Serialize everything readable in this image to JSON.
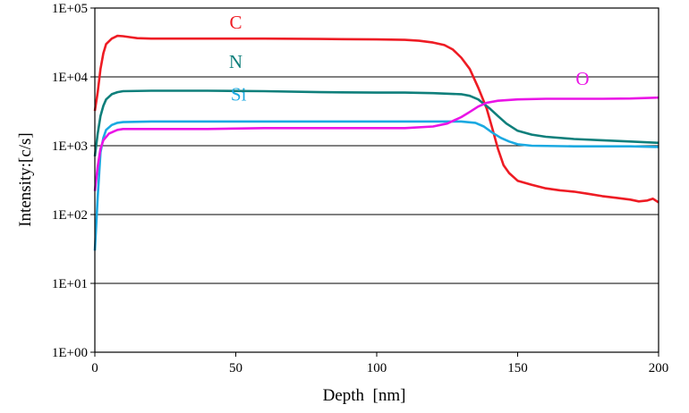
{
  "chart_data": {
    "type": "line",
    "title": "",
    "xlabel": "Depth  [nm]",
    "ylabel": "Intensity:[c/s]",
    "xlim": [
      0,
      200
    ],
    "ylim": [
      1,
      100000
    ],
    "yscale": "log",
    "x_ticks": [
      0,
      50,
      100,
      150,
      200
    ],
    "x_tick_labels": [
      "0",
      "50",
      "100",
      "150",
      "200"
    ],
    "y_ticks": [
      1,
      10,
      100,
      1000,
      10000,
      100000
    ],
    "y_tick_labels": [
      "1E+00",
      "1E+01",
      "1E+02",
      "1E+03",
      "1E+04",
      "1E+05"
    ],
    "grid": "horizontal",
    "series": [
      {
        "name": "C",
        "color": "#ee1c24",
        "label_at": [
          50,
          50000
        ],
        "points": [
          [
            0,
            3200
          ],
          [
            1,
            6000
          ],
          [
            2,
            13000
          ],
          [
            3,
            22000
          ],
          [
            4,
            30000
          ],
          [
            6,
            36000
          ],
          [
            8,
            39500
          ],
          [
            10,
            39000
          ],
          [
            12,
            38000
          ],
          [
            15,
            36500
          ],
          [
            20,
            36000
          ],
          [
            40,
            36000
          ],
          [
            60,
            36000
          ],
          [
            80,
            35500
          ],
          [
            100,
            35000
          ],
          [
            110,
            34500
          ],
          [
            115,
            33500
          ],
          [
            120,
            31500
          ],
          [
            124,
            29000
          ],
          [
            127,
            25000
          ],
          [
            130,
            19000
          ],
          [
            133,
            13000
          ],
          [
            136,
            7000
          ],
          [
            139,
            3500
          ],
          [
            141,
            1800
          ],
          [
            143,
            900
          ],
          [
            145,
            520
          ],
          [
            147,
            400
          ],
          [
            150,
            310
          ],
          [
            155,
            270
          ],
          [
            160,
            240
          ],
          [
            165,
            225
          ],
          [
            170,
            215
          ],
          [
            175,
            200
          ],
          [
            180,
            185
          ],
          [
            185,
            175
          ],
          [
            190,
            165
          ],
          [
            193,
            155
          ],
          [
            196,
            160
          ],
          [
            198,
            170
          ],
          [
            200,
            150
          ]
        ]
      },
      {
        "name": "N",
        "color": "#0f7f7b",
        "label_at": [
          50,
          13500
        ],
        "points": [
          [
            0,
            700
          ],
          [
            1,
            1500
          ],
          [
            2,
            2700
          ],
          [
            3,
            3800
          ],
          [
            4,
            4700
          ],
          [
            6,
            5600
          ],
          [
            8,
            6000
          ],
          [
            10,
            6200
          ],
          [
            20,
            6300
          ],
          [
            40,
            6300
          ],
          [
            60,
            6200
          ],
          [
            80,
            6000
          ],
          [
            100,
            5900
          ],
          [
            110,
            5900
          ],
          [
            120,
            5800
          ],
          [
            130,
            5600
          ],
          [
            133,
            5300
          ],
          [
            136,
            4700
          ],
          [
            140,
            3500
          ],
          [
            143,
            2700
          ],
          [
            146,
            2100
          ],
          [
            150,
            1650
          ],
          [
            155,
            1450
          ],
          [
            160,
            1350
          ],
          [
            170,
            1250
          ],
          [
            180,
            1200
          ],
          [
            190,
            1150
          ],
          [
            200,
            1100
          ]
        ]
      },
      {
        "name": "Si",
        "color": "#1ba9e1",
        "label_at": [
          51,
          4500
        ],
        "points": [
          [
            0,
            30
          ],
          [
            1,
            180
          ],
          [
            2,
            800
          ],
          [
            3,
            1300
          ],
          [
            4,
            1700
          ],
          [
            6,
            2000
          ],
          [
            8,
            2150
          ],
          [
            10,
            2200
          ],
          [
            20,
            2250
          ],
          [
            40,
            2250
          ],
          [
            60,
            2250
          ],
          [
            80,
            2250
          ],
          [
            100,
            2250
          ],
          [
            120,
            2250
          ],
          [
            130,
            2250
          ],
          [
            135,
            2150
          ],
          [
            138,
            1900
          ],
          [
            141,
            1550
          ],
          [
            144,
            1300
          ],
          [
            147,
            1150
          ],
          [
            150,
            1050
          ],
          [
            155,
            1000
          ],
          [
            170,
            980
          ],
          [
            190,
            980
          ],
          [
            200,
            960
          ]
        ]
      },
      {
        "name": "O",
        "color": "#ea14e6",
        "label_at": [
          173,
          7600
        ],
        "points": [
          [
            0,
            220
          ],
          [
            1,
            500
          ],
          [
            2,
            900
          ],
          [
            3,
            1200
          ],
          [
            5,
            1500
          ],
          [
            8,
            1700
          ],
          [
            10,
            1750
          ],
          [
            20,
            1750
          ],
          [
            40,
            1750
          ],
          [
            60,
            1800
          ],
          [
            80,
            1800
          ],
          [
            100,
            1800
          ],
          [
            110,
            1800
          ],
          [
            120,
            1900
          ],
          [
            125,
            2100
          ],
          [
            130,
            2600
          ],
          [
            133,
            3100
          ],
          [
            136,
            3700
          ],
          [
            139,
            4200
          ],
          [
            143,
            4500
          ],
          [
            150,
            4700
          ],
          [
            160,
            4800
          ],
          [
            170,
            4800
          ],
          [
            180,
            4800
          ],
          [
            190,
            4850
          ],
          [
            200,
            5000
          ]
        ]
      }
    ]
  }
}
